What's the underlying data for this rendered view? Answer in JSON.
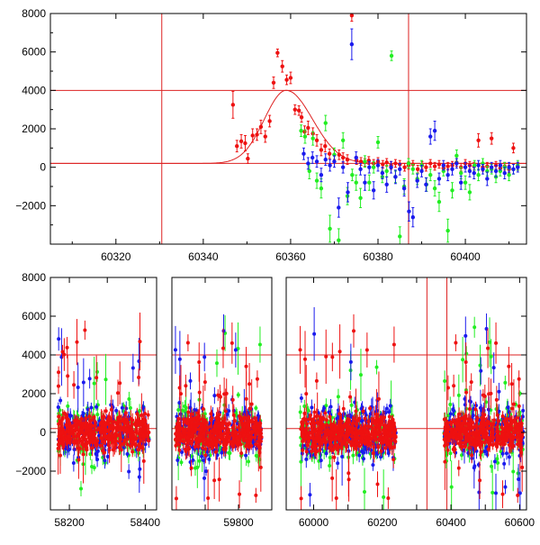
{
  "colors": {
    "g": "#22ee22",
    "b": "#1a1aee",
    "r": "#ee1111",
    "frame": "#000000",
    "guide": "#dd2222"
  },
  "chart_data": [
    {
      "type": "scatter",
      "title": "",
      "xlabel": "",
      "ylabel": "",
      "xlim": [
        60305,
        60414
      ],
      "ylim": [
        -4000,
        8000
      ],
      "x_ticks": [
        60320,
        60340,
        60360,
        60380,
        60400
      ],
      "x_tick_labels": [
        "60320",
        "60340",
        "60360",
        "60380",
        "60400"
      ],
      "y_ticks": [
        -2000,
        0,
        2000,
        4000,
        6000,
        8000
      ],
      "y_tick_labels": [
        "−2000",
        "0",
        "2000",
        "4000",
        "6000",
        "8000"
      ],
      "hlines": [
        4000,
        200
      ],
      "vlines": [
        60330.5,
        60387
      ],
      "model_curve": {
        "peak_x": 60359,
        "peak_y": 4000,
        "baseline": 200,
        "rise_sigma": 5,
        "decay_sigma": 6
      },
      "series": [
        {
          "name": "",
          "color_key": "r",
          "points": [
            [
              60346.8,
              3250,
              700
            ],
            [
              60347.7,
              1100,
              300
            ],
            [
              60348.7,
              1350,
              350
            ],
            [
              60349.6,
              1250,
              400
            ],
            [
              60350.2,
              450,
              250
            ],
            [
              60351.3,
              1650,
              350
            ],
            [
              60352.3,
              1700,
              300
            ],
            [
              60353.2,
              2100,
              350
            ],
            [
              60354.2,
              1600,
              300
            ],
            [
              60355.2,
              2400,
              300
            ],
            [
              60356.1,
              4400,
              300
            ],
            [
              60357.0,
              5950,
              200
            ],
            [
              60358.1,
              5250,
              300
            ],
            [
              60359.1,
              4550,
              250
            ],
            [
              60360.0,
              4650,
              300
            ],
            [
              60361.0,
              3000,
              250
            ],
            [
              60361.9,
              2950,
              250
            ],
            [
              60362.5,
              2600,
              250
            ],
            [
              60363.2,
              1850,
              300
            ],
            [
              60364.0,
              2050,
              350
            ],
            [
              60365.1,
              1750,
              300
            ],
            [
              60366.0,
              1400,
              300
            ],
            [
              60367.0,
              900,
              300
            ],
            [
              60367.9,
              1100,
              300
            ],
            [
              60368.9,
              700,
              250
            ],
            [
              60370.0,
              650,
              250
            ],
            [
              60371.1,
              650,
              250
            ],
            [
              60372.0,
              500,
              250
            ],
            [
              60373.0,
              400,
              250
            ],
            [
              60374.0,
              7900,
              300
            ],
            [
              60375.1,
              350,
              200
            ],
            [
              60376.1,
              300,
              200
            ],
            [
              60377.0,
              250,
              200
            ],
            [
              60377.9,
              350,
              200
            ],
            [
              60379.0,
              200,
              200
            ],
            [
              60380.0,
              300,
              200
            ],
            [
              60381.1,
              150,
              200
            ],
            [
              60382.0,
              250,
              200
            ],
            [
              60383.0,
              100,
              200
            ],
            [
              60384.0,
              200,
              200
            ],
            [
              60385.0,
              150,
              200
            ],
            [
              60386.1,
              0,
              200
            ],
            [
              60387.0,
              100,
              200
            ],
            [
              60388.0,
              150,
              200
            ],
            [
              60389.1,
              -100,
              200
            ],
            [
              60390.1,
              100,
              200
            ],
            [
              60391.0,
              0,
              200
            ],
            [
              60392.0,
              200,
              200
            ],
            [
              60393.0,
              50,
              200
            ],
            [
              60394.0,
              150,
              200
            ],
            [
              60395.0,
              -50,
              200
            ],
            [
              60396.0,
              50,
              200
            ],
            [
              60397.0,
              100,
              200
            ],
            [
              60398.0,
              250,
              200
            ],
            [
              60399.0,
              0,
              200
            ],
            [
              60400.0,
              200,
              200
            ],
            [
              60401.0,
              100,
              200
            ],
            [
              60402.0,
              50,
              200
            ],
            [
              60403.0,
              1400,
              350
            ],
            [
              60404.0,
              0,
              200
            ],
            [
              60405.0,
              50,
              200
            ],
            [
              60406.0,
              1500,
              300
            ],
            [
              60407.0,
              100,
              200
            ],
            [
              60408.0,
              -50,
              200
            ],
            [
              60409.0,
              50,
              200
            ],
            [
              60410.0,
              -100,
              200
            ],
            [
              60411.0,
              1000,
              250
            ],
            [
              60412.0,
              50,
              200
            ]
          ]
        },
        {
          "name": "",
          "color_key": "g",
          "points": [
            [
              60362.4,
              1900,
              300
            ],
            [
              60363.3,
              1600,
              350
            ],
            [
              60364.3,
              -200,
              400
            ],
            [
              60365.1,
              1500,
              350
            ],
            [
              60366.0,
              -700,
              400
            ],
            [
              60367.0,
              -1100,
              500
            ],
            [
              60368.0,
              2300,
              400
            ],
            [
              60369.0,
              -3200,
              700
            ],
            [
              60370.0,
              650,
              350
            ],
            [
              60371.0,
              -3800,
              600
            ],
            [
              60372.0,
              1400,
              400
            ],
            [
              60373.0,
              -1500,
              450
            ],
            [
              60374.1,
              -400,
              300
            ],
            [
              60375.0,
              -800,
              400
            ],
            [
              60376.0,
              -1600,
              500
            ],
            [
              60377.0,
              300,
              300
            ],
            [
              60378.0,
              -800,
              400
            ],
            [
              60379.0,
              0,
              300
            ],
            [
              60380.0,
              1300,
              300
            ],
            [
              60381.0,
              -500,
              300
            ],
            [
              60382.0,
              -200,
              300
            ],
            [
              60383.1,
              5800,
              250
            ],
            [
              60384.0,
              -500,
              300
            ],
            [
              60385.0,
              -3600,
              500
            ],
            [
              60386.0,
              -1000,
              400
            ],
            [
              60387.0,
              200,
              250
            ],
            [
              60388.0,
              -100,
              250
            ],
            [
              60389.0,
              -600,
              300
            ],
            [
              60390.0,
              100,
              250
            ],
            [
              60391.1,
              -900,
              350
            ],
            [
              60392.0,
              -400,
              300
            ],
            [
              60393.0,
              -1100,
              400
            ],
            [
              60394.0,
              -1800,
              500
            ],
            [
              60395.0,
              -200,
              250
            ],
            [
              60396.0,
              -3300,
              600
            ],
            [
              60397.0,
              -1200,
              400
            ],
            [
              60398.0,
              600,
              300
            ],
            [
              60399.0,
              -300,
              300
            ],
            [
              60400.0,
              -800,
              350
            ],
            [
              60401.0,
              -1300,
              400
            ],
            [
              60402.1,
              100,
              250
            ],
            [
              60403.0,
              -400,
              300
            ],
            [
              60404.0,
              200,
              250
            ],
            [
              60405.0,
              -200,
              250
            ],
            [
              60406.0,
              -100,
              250
            ],
            [
              60407.0,
              -500,
              300
            ],
            [
              60408.0,
              -200,
              250
            ],
            [
              60409.0,
              0,
              250
            ],
            [
              60410.0,
              -400,
              300
            ],
            [
              60411.0,
              -100,
              250
            ],
            [
              60412.0,
              100,
              250
            ]
          ]
        },
        {
          "name": "",
          "color_key": "b",
          "points": [
            [
              60363.0,
              700,
              300
            ],
            [
              60364.0,
              200,
              300
            ],
            [
              60365.0,
              500,
              300
            ],
            [
              60366.0,
              300,
              300
            ],
            [
              60367.0,
              -400,
              350
            ],
            [
              60368.0,
              400,
              300
            ],
            [
              60369.0,
              100,
              300
            ],
            [
              60370.0,
              300,
              300
            ],
            [
              60371.0,
              -2100,
              500
            ],
            [
              60372.0,
              0,
              300
            ],
            [
              60373.1,
              -1300,
              500
            ],
            [
              60374.0,
              6400,
              800
            ],
            [
              60375.0,
              500,
              300
            ],
            [
              60376.0,
              -100,
              300
            ],
            [
              60377.0,
              -800,
              400
            ],
            [
              60378.0,
              0,
              300
            ],
            [
              60379.0,
              -1200,
              450
            ],
            [
              60380.0,
              100,
              300
            ],
            [
              60381.0,
              -300,
              300
            ],
            [
              60382.0,
              -900,
              400
            ],
            [
              60383.0,
              0,
              300
            ],
            [
              60384.0,
              -500,
              350
            ],
            [
              60385.0,
              -100,
              300
            ],
            [
              60386.0,
              -1100,
              400
            ],
            [
              60387.1,
              -2300,
              500
            ],
            [
              60388.0,
              -2600,
              500
            ],
            [
              60389.0,
              -700,
              350
            ],
            [
              60390.0,
              -200,
              300
            ],
            [
              60391.0,
              -900,
              350
            ],
            [
              60392.0,
              1600,
              400
            ],
            [
              60393.0,
              1900,
              500
            ],
            [
              60394.0,
              -600,
              300
            ],
            [
              60395.0,
              100,
              250
            ],
            [
              60396.0,
              -400,
              300
            ],
            [
              60397.0,
              -100,
              300
            ],
            [
              60398.0,
              200,
              250
            ],
            [
              60399.0,
              -800,
              350
            ],
            [
              60400.0,
              0,
              250
            ],
            [
              60401.0,
              -200,
              300
            ],
            [
              60402.0,
              -300,
              300
            ],
            [
              60403.0,
              100,
              250
            ],
            [
              60404.0,
              -100,
              250
            ],
            [
              60405.0,
              -600,
              350
            ],
            [
              60406.0,
              0,
              250
            ],
            [
              60407.0,
              -200,
              300
            ],
            [
              60408.0,
              100,
              250
            ],
            [
              60409.0,
              -300,
              300
            ],
            [
              60410.0,
              0,
              250
            ],
            [
              60411.0,
              -100,
              250
            ],
            [
              60412.0,
              0,
              250
            ]
          ]
        }
      ]
    },
    {
      "type": "scatter",
      "title": "",
      "xlabel": "",
      "ylabel": "",
      "ylim": [
        -4000,
        8000
      ],
      "y_ticks": [
        -2000,
        0,
        2000,
        4000,
        6000,
        8000
      ],
      "y_tick_labels": [
        "−2000",
        "0",
        "2000",
        "4000",
        "6000",
        "8000"
      ],
      "hlines": [
        4000,
        200
      ],
      "segments": [
        {
          "xlim": [
            58150,
            58430
          ],
          "x_ticks": [
            58200,
            58300,
            58400
          ],
          "x_tick_labels": [
            "58200",
            "",
            "58400"
          ],
          "data_range": [
            58170,
            58410
          ]
        },
        {
          "xlim": [
            59600,
            59900
          ],
          "x_ticks": [
            59700,
            59800
          ],
          "x_tick_labels": [
            "",
            "59800"
          ],
          "data_range": [
            59610,
            59870
          ]
        },
        {
          "xlim": [
            59920,
            60620
          ],
          "x_ticks": [
            60000,
            60100,
            60200,
            60300,
            60400,
            60500,
            60600
          ],
          "x_tick_labels": [
            "60000",
            "",
            "60200",
            "",
            "60400",
            "",
            "60600"
          ],
          "data_ranges": [
            [
              59960,
              60240
            ],
            [
              60380,
              60610
            ]
          ],
          "vlines": [
            60330,
            60388
          ]
        }
      ]
    }
  ]
}
